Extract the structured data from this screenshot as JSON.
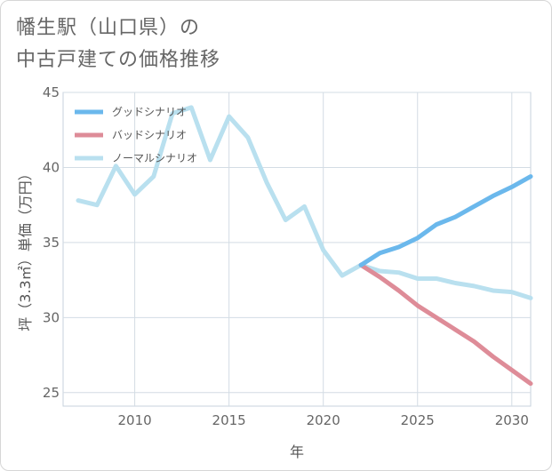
{
  "chart_data": {
    "type": "line",
    "title_lines": [
      "幡生駅（山口県）の",
      "中古戸建ての価格推移"
    ],
    "xlabel": "年",
    "ylabel": "坪（3.3㎡）単価（万円）",
    "xlim": [
      2006.2,
      2031
    ],
    "ylim": [
      24.1,
      45
    ],
    "x_ticks": [
      2010,
      2015,
      2020,
      2025,
      2030
    ],
    "y_ticks": [
      25,
      30,
      35,
      40,
      45
    ],
    "legend_position": "top-left",
    "series": [
      {
        "name": "グッドシナリオ",
        "color": "#6bb8ec",
        "x": [
          2022,
          2023,
          2024,
          2025,
          2026,
          2027,
          2028,
          2029,
          2030,
          2031
        ],
        "values": [
          33.5,
          34.3,
          34.7,
          35.3,
          36.2,
          36.7,
          37.4,
          38.1,
          38.7,
          39.4
        ]
      },
      {
        "name": "バッドシナリオ",
        "color": "#de8c98",
        "x": [
          2022,
          2023,
          2024,
          2025,
          2026,
          2027,
          2028,
          2029,
          2030,
          2031
        ],
        "values": [
          33.5,
          32.7,
          31.8,
          30.8,
          30.0,
          29.2,
          28.4,
          27.4,
          26.5,
          25.6
        ]
      },
      {
        "name": "ノーマルシナリオ",
        "color": "#b9e0ef",
        "x": [
          2007,
          2008,
          2009,
          2010,
          2011,
          2012,
          2013,
          2014,
          2015,
          2016,
          2017,
          2018,
          2019,
          2020,
          2021,
          2022,
          2023,
          2024,
          2025,
          2026,
          2027,
          2028,
          2029,
          2030,
          2031
        ],
        "values": [
          37.8,
          37.5,
          40.1,
          38.2,
          39.4,
          43.6,
          44.0,
          40.5,
          43.4,
          42.0,
          39.0,
          36.5,
          37.4,
          34.5,
          32.8,
          33.5,
          33.1,
          33.0,
          32.6,
          32.6,
          32.3,
          32.1,
          31.8,
          31.7,
          31.3
        ]
      }
    ]
  }
}
